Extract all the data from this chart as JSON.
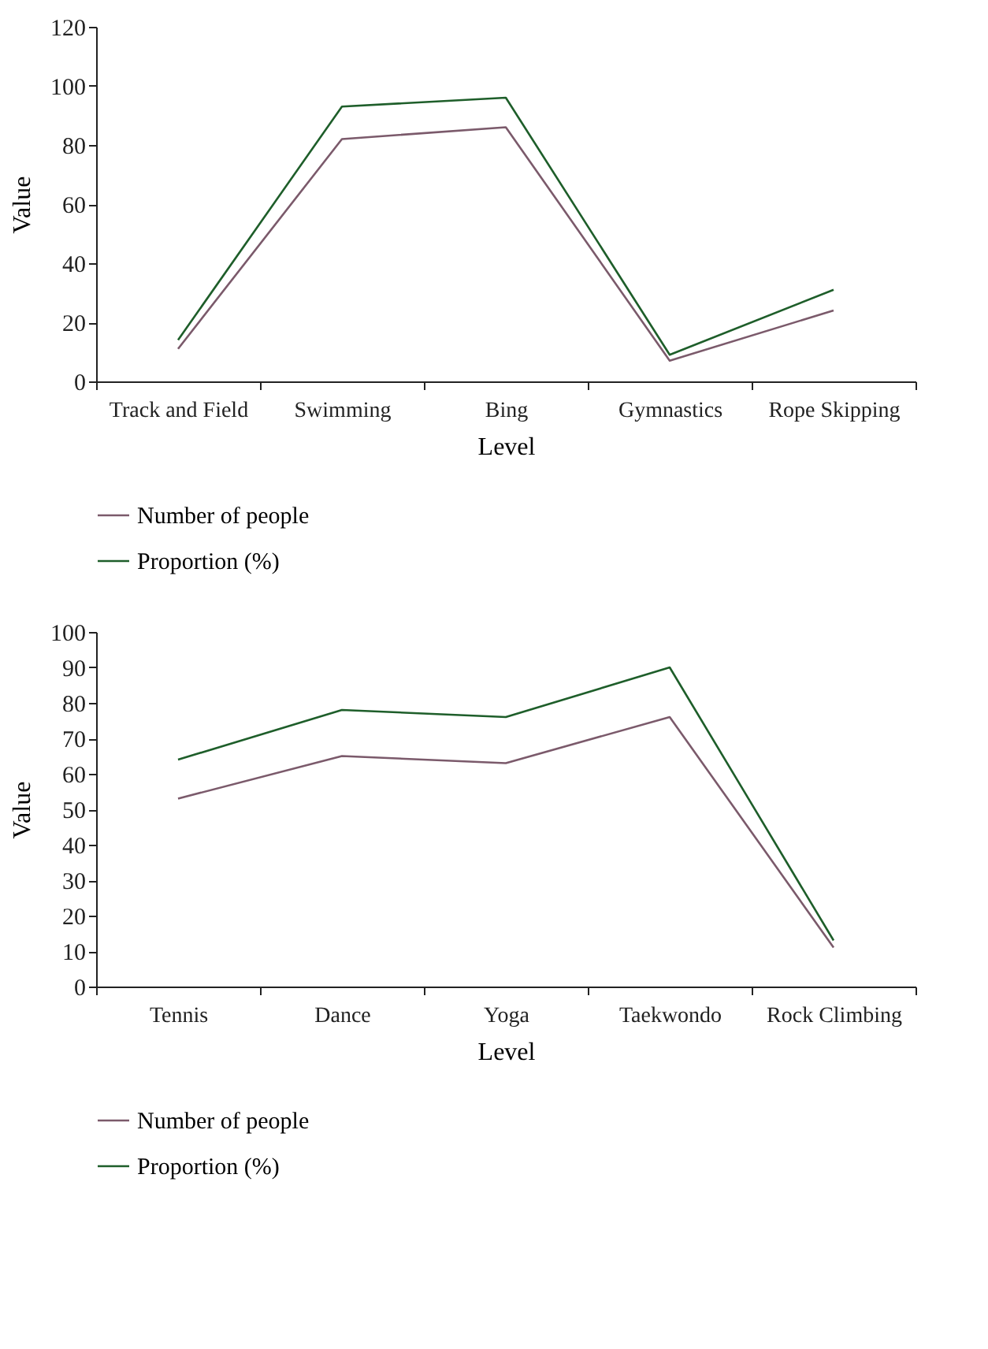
{
  "chart_data": [
    {
      "type": "line",
      "xlabel": "Level",
      "ylabel": "Value",
      "categories": [
        "Track and Field",
        "Swimming",
        "Bing",
        "Gymnastics",
        "Rope Skipping"
      ],
      "ylim": [
        0,
        120
      ],
      "yticks": [
        0,
        20,
        40,
        60,
        80,
        100,
        120
      ],
      "grid": false,
      "legend": "bottom",
      "marker": "none",
      "line_style": "solid",
      "series": [
        {
          "name": "Number of people",
          "color": "#7b5a6b",
          "values": [
            11,
            82,
            86,
            7,
            24
          ]
        },
        {
          "name": "Proportion (%)",
          "color": "#1e5e2a",
          "values": [
            14,
            93,
            96,
            9,
            31
          ]
        }
      ]
    },
    {
      "type": "line",
      "xlabel": "Level",
      "ylabel": "Value",
      "categories": [
        "Tennis",
        "Dance",
        "Yoga",
        "Taekwondo",
        "Rock Climbing"
      ],
      "ylim": [
        0,
        100
      ],
      "yticks": [
        0,
        10,
        20,
        30,
        40,
        50,
        60,
        70,
        80,
        90,
        100
      ],
      "grid": false,
      "legend": "bottom",
      "marker": "none",
      "line_style": "solid",
      "series": [
        {
          "name": "Number of people",
          "color": "#7b5a6b",
          "values": [
            53,
            65,
            63,
            76,
            11
          ]
        },
        {
          "name": "Proportion (%)",
          "color": "#1e5e2a",
          "values": [
            64,
            78,
            76,
            90,
            13
          ]
        }
      ]
    }
  ]
}
